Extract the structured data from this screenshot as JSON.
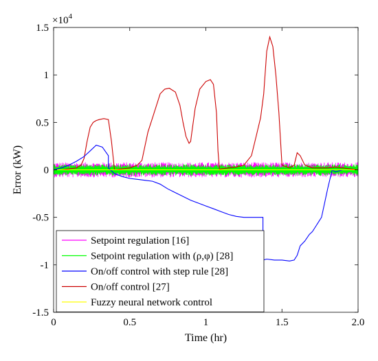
{
  "chart_data": {
    "type": "line",
    "xlabel": "Time (hr)",
    "ylabel": "Error (kW)",
    "y_exponent_label": "×10",
    "y_exponent_power": "4",
    "xlim": [
      0,
      2.0
    ],
    "ylim": [
      -1.5,
      1.5
    ],
    "y_scale_factor": 10000,
    "x_ticks": [
      0,
      0.5,
      1,
      1.5,
      2.0
    ],
    "x_tick_labels": [
      "0",
      "0.5",
      "1",
      "1.5",
      "2.0"
    ],
    "y_ticks": [
      -1.5,
      -1,
      -0.5,
      0,
      0.5,
      1,
      1.5
    ],
    "y_tick_labels": [
      "-1.5",
      "-1",
      "-0.5",
      "0",
      "0.5",
      "1",
      "1.5"
    ],
    "grid": false,
    "legend_position": "bottom-left",
    "series": [
      {
        "name": "Setpoint regulation [16]",
        "color": "#ff00ff",
        "noise": true,
        "x": [
          0,
          0.2,
          0.4,
          0.6,
          0.8,
          1.0,
          1.2,
          1.4,
          1.6,
          1.8,
          2.0
        ],
        "y": [
          0,
          0,
          0,
          0,
          0,
          0,
          0,
          0,
          0,
          0,
          0
        ],
        "amplitude": [
          0.08,
          0.08,
          0.08,
          0.08,
          0.08,
          0.08,
          0.08,
          0.08,
          0.08,
          0.08,
          0.08
        ]
      },
      {
        "name": "Setpoint regulation with (ρ,φ) [28]",
        "color": "#00ff00",
        "noise": true,
        "x": [
          0,
          0.2,
          0.4,
          0.6,
          0.8,
          1.0,
          1.2,
          1.4,
          1.6,
          1.8,
          2.0
        ],
        "y": [
          0,
          0,
          0,
          0,
          0,
          0,
          0,
          0,
          0,
          0,
          0
        ],
        "amplitude": [
          0.06,
          0.06,
          0.06,
          0.06,
          0.06,
          0.06,
          0.06,
          0.06,
          0.06,
          0.06,
          0.06
        ]
      },
      {
        "name": "On/off control with step rule [28]",
        "color": "#0000ff",
        "noise": false,
        "x": [
          0,
          0.05,
          0.1,
          0.15,
          0.2,
          0.24,
          0.28,
          0.32,
          0.36,
          0.36,
          0.4,
          0.45,
          0.5,
          0.55,
          0.6,
          0.65,
          0.7,
          0.75,
          0.8,
          0.85,
          0.9,
          0.95,
          1.0,
          1.05,
          1.1,
          1.15,
          1.2,
          1.25,
          1.3,
          1.35,
          1.375,
          1.375,
          1.4,
          1.45,
          1.5,
          1.55,
          1.58,
          1.6,
          1.62,
          1.65,
          1.68,
          1.7,
          1.72,
          1.74,
          1.76,
          1.78,
          1.8,
          1.83,
          1.85,
          1.9,
          2.0
        ],
        "y": [
          0,
          0.02,
          0.05,
          0.09,
          0.14,
          0.2,
          0.26,
          0.24,
          0.15,
          0.02,
          -0.04,
          -0.07,
          -0.09,
          -0.1,
          -0.11,
          -0.12,
          -0.15,
          -0.2,
          -0.24,
          -0.28,
          -0.32,
          -0.35,
          -0.38,
          -0.41,
          -0.44,
          -0.47,
          -0.49,
          -0.5,
          -0.5,
          -0.5,
          -0.5,
          -0.95,
          -0.94,
          -0.95,
          -0.95,
          -0.96,
          -0.95,
          -0.9,
          -0.8,
          -0.75,
          -0.68,
          -0.65,
          -0.6,
          -0.55,
          -0.5,
          -0.35,
          -0.2,
          0.0,
          -0.02,
          0,
          0
        ]
      },
      {
        "name": "On/off control [27]",
        "color": "#cc0000",
        "noise": false,
        "x": [
          0,
          0.05,
          0.1,
          0.15,
          0.18,
          0.2,
          0.22,
          0.24,
          0.26,
          0.28,
          0.3,
          0.33,
          0.36,
          0.38,
          0.4,
          0.45,
          0.5,
          0.55,
          0.58,
          0.6,
          0.62,
          0.65,
          0.68,
          0.7,
          0.73,
          0.76,
          0.8,
          0.83,
          0.85,
          0.87,
          0.89,
          0.9,
          0.91,
          0.93,
          0.96,
          1.0,
          1.03,
          1.05,
          1.07,
          1.08,
          1.09,
          1.1,
          1.15,
          1.2,
          1.25,
          1.3,
          1.33,
          1.36,
          1.38,
          1.4,
          1.42,
          1.44,
          1.46,
          1.48,
          1.5,
          1.55,
          1.58,
          1.6,
          1.62,
          1.65,
          1.7,
          1.75,
          1.8,
          1.85,
          1.9,
          1.95,
          2.0
        ],
        "y": [
          0,
          0,
          0.01,
          0.02,
          0.05,
          0.12,
          0.3,
          0.45,
          0.5,
          0.52,
          0.53,
          0.54,
          0.53,
          0.3,
          0.0,
          0.01,
          0.02,
          0.05,
          0.1,
          0.25,
          0.4,
          0.55,
          0.7,
          0.8,
          0.85,
          0.86,
          0.82,
          0.68,
          0.5,
          0.35,
          0.28,
          0.3,
          0.42,
          0.65,
          0.85,
          0.93,
          0.95,
          0.9,
          0.6,
          0.2,
          0.0,
          0.01,
          0.02,
          0.03,
          0.05,
          0.15,
          0.35,
          0.55,
          0.8,
          1.25,
          1.4,
          1.3,
          1.0,
          0.6,
          0.05,
          0.02,
          0.05,
          0.18,
          0.15,
          0.05,
          0.02,
          0.02,
          0.02,
          0.03,
          0.02,
          0.01,
          0
        ]
      },
      {
        "name": "Fuzzy neural network control",
        "color": "#ffff00",
        "noise": false,
        "x": [
          0,
          0.2,
          0.4,
          0.6,
          0.8,
          1.0,
          1.2,
          1.4,
          1.6,
          1.8,
          2.0
        ],
        "y": [
          0,
          0,
          0,
          0,
          0,
          0,
          0,
          0,
          0,
          0,
          0
        ]
      }
    ]
  }
}
